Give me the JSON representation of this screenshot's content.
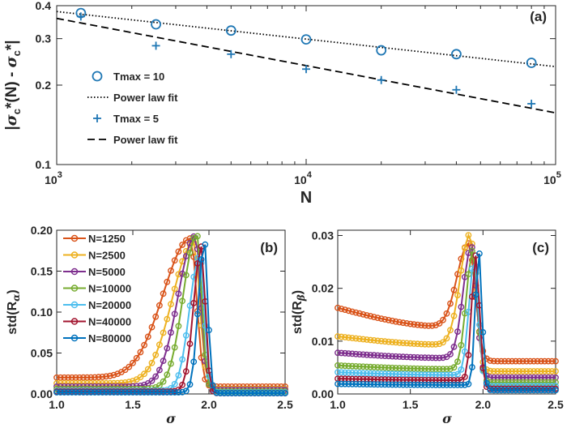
{
  "chart_data": [
    {
      "id": "a",
      "type": "scatter",
      "panel_label": "(a)",
      "xlabel": "N",
      "ylabel_parts": [
        "|",
        "σ",
        "c",
        "*(N) - ",
        "σ",
        "c",
        "*|"
      ],
      "xscale": "log",
      "yscale": "log",
      "xlim": [
        1000,
        100000
      ],
      "ylim": [
        0.1,
        0.4
      ],
      "xticks": [
        {
          "value": 1000,
          "base": "10",
          "exp": "3"
        },
        {
          "value": 10000,
          "base": "10",
          "exp": "4"
        },
        {
          "value": 100000,
          "base": "10",
          "exp": "5"
        }
      ],
      "yticks": [
        {
          "value": 0.1,
          "label": "0.1"
        },
        {
          "value": 0.2,
          "label": "0.2"
        },
        {
          "value": 0.3,
          "label": "0.3"
        },
        {
          "value": 0.4,
          "label": "0.4"
        }
      ],
      "color": "#1f77b4",
      "legend_position": "left",
      "series": [
        {
          "name": "Tmax = 10",
          "kind": "circle",
          "x": [
            1250,
            2500,
            5000,
            10000,
            20000,
            40000,
            80000
          ],
          "y": [
            0.375,
            0.34,
            0.322,
            0.298,
            0.271,
            0.262,
            0.243
          ]
        },
        {
          "name": "Power law fit",
          "kind": "dotted",
          "x": [
            1000,
            100000
          ],
          "y": [
            0.38,
            0.235
          ]
        },
        {
          "name": "Tmax = 5",
          "kind": "plus",
          "x": [
            1250,
            2500,
            5000,
            10000,
            20000,
            40000,
            80000
          ],
          "y": [
            0.364,
            0.282,
            0.262,
            0.23,
            0.209,
            0.192,
            0.17
          ]
        },
        {
          "name": "Power law fit",
          "kind": "dashed",
          "x": [
            1000,
            100000
          ],
          "y": [
            0.358,
            0.157
          ]
        }
      ]
    },
    {
      "id": "b",
      "type": "line",
      "panel_label": "(b)",
      "xlabel": "σ",
      "ylabel": "std(R",
      "ylabel_sub": "α",
      "ylabel_tail": ")",
      "xlim": [
        1.0,
        2.5
      ],
      "ylim": [
        0,
        0.2
      ],
      "xticks": [
        {
          "value": 1.0,
          "label": "1.0"
        },
        {
          "value": 1.5,
          "label": "1.5"
        },
        {
          "value": 2.0,
          "label": "2.0"
        },
        {
          "value": 2.5,
          "label": "2.5"
        }
      ],
      "yticks": [
        {
          "value": 0,
          "label": "0.00"
        },
        {
          "value": 0.05,
          "label": "0.05"
        },
        {
          "value": 0.1,
          "label": "0.10"
        },
        {
          "value": 0.15,
          "label": "0.15"
        },
        {
          "value": 0.2,
          "label": "0.20"
        }
      ],
      "legend_position": "top-left",
      "series": [
        {
          "name": "N=1250",
          "color": "#d95319",
          "base": 0.02,
          "peak": 0.19,
          "center": 1.88,
          "wl": 0.32,
          "wr": 0.06,
          "tail": 0.009
        },
        {
          "name": "N=2500",
          "color": "#edb120",
          "base": 0.013,
          "peak": 0.185,
          "center": 1.9,
          "wl": 0.25,
          "wr": 0.06,
          "tail": 0.006
        },
        {
          "name": "N=5000",
          "color": "#7e2f8e",
          "base": 0.009,
          "peak": 0.193,
          "center": 1.91,
          "wl": 0.2,
          "wr": 0.055,
          "tail": 0.005
        },
        {
          "name": "N=10000",
          "color": "#77ac30",
          "base": 0.006,
          "peak": 0.195,
          "center": 1.92,
          "wl": 0.16,
          "wr": 0.05,
          "tail": 0.003
        },
        {
          "name": "N=20000",
          "color": "#4dbeee",
          "base": 0.004,
          "peak": 0.17,
          "center": 1.94,
          "wl": 0.12,
          "wr": 0.045,
          "tail": 0.002
        },
        {
          "name": "N=40000",
          "color": "#a2142f",
          "base": 0.003,
          "peak": 0.18,
          "center": 1.95,
          "wl": 0.09,
          "wr": 0.04,
          "tail": 0.001
        },
        {
          "name": "N=80000",
          "color": "#0072bd",
          "base": 0.002,
          "peak": 0.187,
          "center": 1.97,
          "wl": 0.07,
          "wr": 0.035,
          "tail": 0.001
        }
      ]
    },
    {
      "id": "c",
      "type": "line",
      "panel_label": "(c)",
      "xlabel": "σ",
      "ylabel": "std(R",
      "ylabel_sub": "β",
      "ylabel_tail": ")",
      "xlim": [
        1.0,
        2.5
      ],
      "ylim": [
        0,
        0.031
      ],
      "xticks": [
        {
          "value": 1.0,
          "label": "1.0"
        },
        {
          "value": 1.5,
          "label": "1.5"
        },
        {
          "value": 2.0,
          "label": "2.0"
        },
        {
          "value": 2.5,
          "label": "2.5"
        }
      ],
      "yticks": [
        {
          "value": 0,
          "label": "0.00"
        },
        {
          "value": 0.01,
          "label": "0.01"
        },
        {
          "value": 0.02,
          "label": "0.02"
        },
        {
          "value": 0.03,
          "label": "0.03"
        }
      ],
      "series": [
        {
          "name": "N=1250",
          "color": "#d95319",
          "base": 0.0163,
          "dip": 0.0127,
          "peak": 0.0285,
          "center": 1.9,
          "wl": 0.14,
          "wr": 0.07,
          "tail": 0.0062
        },
        {
          "name": "N=2500",
          "color": "#edb120",
          "base": 0.0109,
          "dip": 0.0093,
          "peak": 0.0303,
          "center": 1.91,
          "wl": 0.12,
          "wr": 0.06,
          "tail": 0.0043
        },
        {
          "name": "N=5000",
          "color": "#7e2f8e",
          "base": 0.0078,
          "dip": 0.0068,
          "peak": 0.028,
          "center": 1.92,
          "wl": 0.1,
          "wr": 0.055,
          "tail": 0.0031
        },
        {
          "name": "N=10000",
          "color": "#77ac30",
          "base": 0.0054,
          "dip": 0.0047,
          "peak": 0.0272,
          "center": 1.93,
          "wl": 0.08,
          "wr": 0.05,
          "tail": 0.0022
        },
        {
          "name": "N=20000",
          "color": "#4dbeee",
          "base": 0.0041,
          "dip": 0.0036,
          "peak": 0.0255,
          "center": 1.94,
          "wl": 0.065,
          "wr": 0.045,
          "tail": 0.0015
        },
        {
          "name": "N=40000",
          "color": "#a2142f",
          "base": 0.0029,
          "dip": 0.0026,
          "peak": 0.0262,
          "center": 1.95,
          "wl": 0.05,
          "wr": 0.04,
          "tail": 0.001
        },
        {
          "name": "N=80000",
          "color": "#0072bd",
          "base": 0.0019,
          "dip": 0.0017,
          "peak": 0.0272,
          "center": 1.97,
          "wl": 0.04,
          "wr": 0.035,
          "tail": 0.0007
        }
      ]
    }
  ]
}
